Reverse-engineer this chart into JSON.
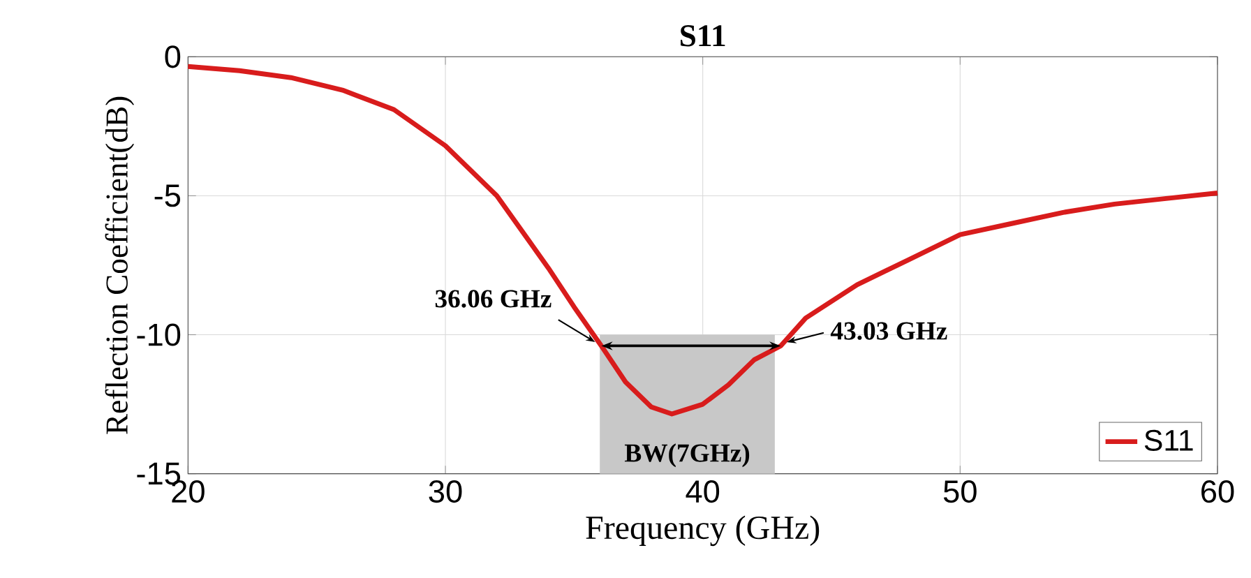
{
  "chart_data": {
    "type": "line",
    "title": "S11",
    "xlabel": "Frequency (GHz)",
    "ylabel": "Reflection Coefficient(dB)",
    "series": [
      {
        "name": "S11",
        "color": "#d81c1c",
        "x": [
          20,
          22,
          24,
          26,
          28,
          30,
          32,
          34,
          35,
          36.06,
          37,
          38,
          38.8,
          40,
          41,
          42,
          43.03,
          44,
          46,
          48,
          50,
          52,
          54,
          56,
          58,
          60
        ],
        "values": [
          -0.35,
          -0.5,
          -0.75,
          -1.2,
          -1.9,
          -3.2,
          -5.0,
          -7.6,
          -9.0,
          -10.4,
          -11.7,
          -12.6,
          -12.85,
          -12.5,
          -11.8,
          -10.9,
          -10.4,
          -9.4,
          -8.2,
          -7.3,
          -6.4,
          -6.0,
          -5.6,
          -5.3,
          -5.1,
          -4.9
        ]
      }
    ],
    "xlim": [
      20,
      60
    ],
    "ylim": [
      -15,
      0
    ],
    "xticks": [
      20,
      30,
      40,
      50,
      60
    ],
    "yticks": [
      -15,
      -10,
      -5,
      0
    ],
    "bands": [
      {
        "axis": "x",
        "from": 36,
        "to": 42.8,
        "label": "BW(7GHz)",
        "color": "#c8c8c8"
      }
    ],
    "annotations": [
      {
        "text": "36.06 GHz",
        "x": 36.06,
        "y": -10.4
      },
      {
        "text": "43.03 GHz",
        "x": 43.03,
        "y": -10.4
      }
    ],
    "grid": true,
    "legend": "bottom right",
    "line_style": "solid",
    "marker": "none"
  }
}
